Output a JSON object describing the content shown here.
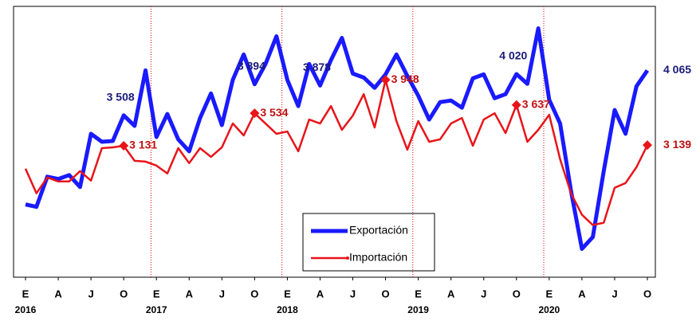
{
  "chart_data": {
    "type": "line",
    "categories": [
      "E",
      null,
      null,
      "A",
      null,
      null,
      "J",
      null,
      null,
      "O",
      null,
      null,
      "E",
      null,
      null,
      "A",
      null,
      null,
      "J",
      null,
      null,
      "O",
      null,
      null,
      "E",
      null,
      null,
      "A",
      null,
      null,
      "J",
      null,
      null,
      "O",
      null,
      null,
      "E",
      null,
      null,
      "A",
      null,
      null,
      "J",
      null,
      null,
      "O",
      null,
      null,
      "E",
      null,
      null,
      "A",
      null,
      null,
      "J",
      null,
      null,
      "O"
    ],
    "category_years": [
      "2016",
      null,
      null,
      null,
      null,
      null,
      null,
      null,
      null,
      null,
      null,
      null,
      "2017",
      null,
      null,
      null,
      null,
      null,
      null,
      null,
      null,
      null,
      null,
      null,
      "2018",
      null,
      null,
      null,
      null,
      null,
      null,
      null,
      null,
      null,
      null,
      null,
      "2019",
      null,
      null,
      null,
      null,
      null,
      null,
      null,
      null,
      null,
      null,
      null,
      "2020",
      null,
      null,
      null,
      null,
      null,
      null,
      null,
      null,
      null
    ],
    "ylim": [
      1500,
      4860
    ],
    "legend": "bottom-center",
    "series": [
      {
        "name": "Exportación",
        "color": "#1a1aff",
        "label_color": "#1a1a7a",
        "values": [
          2403,
          2373,
          2747,
          2718,
          2767,
          2619,
          3279,
          3180,
          3190,
          3508,
          3377,
          4066,
          3239,
          3525,
          3210,
          3062,
          3475,
          3780,
          3387,
          3948,
          4263,
          3894,
          4145,
          4489,
          3948,
          3623,
          4145,
          3878,
          4194,
          4469,
          4026,
          3977,
          3849,
          4016,
          4263,
          3997,
          3751,
          3456,
          3672,
          3692,
          3603,
          3967,
          4016,
          3721,
          3771,
          4020,
          3899,
          4587,
          3702,
          3407,
          2570,
          1852,
          1999,
          2816,
          3574,
          3279,
          3869,
          4065
        ],
        "value_labels": [
          null,
          null,
          null,
          null,
          null,
          null,
          null,
          null,
          null,
          "3 508",
          null,
          null,
          null,
          null,
          null,
          null,
          null,
          null,
          null,
          null,
          null,
          "3 894",
          null,
          null,
          null,
          null,
          null,
          "3 878",
          null,
          null,
          null,
          null,
          null,
          null,
          null,
          null,
          null,
          null,
          null,
          null,
          null,
          null,
          null,
          null,
          null,
          "4 020",
          null,
          null,
          null,
          null,
          null,
          null,
          null,
          null,
          null,
          null,
          null,
          "4 065"
        ]
      },
      {
        "name": "Importación",
        "color": "#e8141a",
        "label_color": "#c01010",
        "values": [
          2846,
          2541,
          2737,
          2688,
          2688,
          2816,
          2698,
          3101,
          3111,
          3131,
          2944,
          2934,
          2885,
          2787,
          3101,
          2915,
          3101,
          2993,
          3111,
          3407,
          3259,
          3534,
          3407,
          3279,
          3308,
          3062,
          3456,
          3407,
          3623,
          3328,
          3505,
          3771,
          3357,
          3948,
          3436,
          3082,
          3436,
          3180,
          3210,
          3407,
          3475,
          3131,
          3456,
          3534,
          3288,
          3637,
          3180,
          3328,
          3515,
          2964,
          2541,
          2275,
          2147,
          2176,
          2609,
          2668,
          2865,
          3139
        ],
        "value_labels": [
          null,
          null,
          null,
          null,
          null,
          null,
          null,
          null,
          null,
          "3 131",
          null,
          null,
          null,
          null,
          null,
          null,
          null,
          null,
          null,
          null,
          null,
          "3 534",
          null,
          null,
          null,
          null,
          null,
          null,
          null,
          null,
          null,
          null,
          null,
          "3 948",
          null,
          null,
          null,
          null,
          null,
          null,
          null,
          null,
          null,
          null,
          null,
          "3 637",
          null,
          null,
          null,
          null,
          null,
          null,
          null,
          null,
          null,
          null,
          null,
          "3 139"
        ]
      }
    ]
  }
}
